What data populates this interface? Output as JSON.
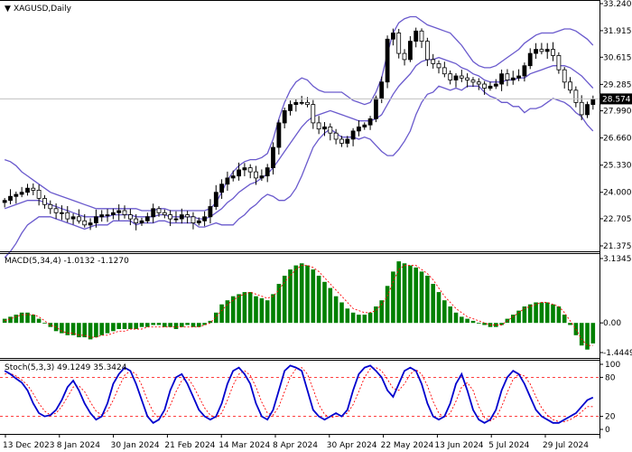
{
  "chart_data": [
    {
      "type": "candlestick",
      "title": "XAGUSD,Daily",
      "y_ticks": [
        "33.240",
        "31.915",
        "30.615",
        "29.285",
        "27.990",
        "26.660",
        "25.330",
        "24.000",
        "22.705",
        "21.375"
      ],
      "ylim": [
        21.375,
        33.24
      ],
      "current_price": "28.574",
      "x_ticks": [
        "13 Dec 2023",
        "8 Jan 2024",
        "30 Jan 2024",
        "21 Feb 2024",
        "14 Mar 2024",
        "8 Apr 2024",
        "30 Apr 2024",
        "22 May 2024",
        "13 Jun 2024",
        "5 Jul 2024",
        "29 Jul 2024"
      ],
      "bollinger_color": "#6a5acd",
      "bull_color": "#000000",
      "bear_color": "#ffffff",
      "close_series": [
        23.6,
        23.8,
        23.9,
        24.0,
        24.2,
        24.1,
        23.7,
        23.4,
        23.2,
        23.0,
        23.0,
        22.7,
        22.8,
        22.6,
        22.4,
        22.5,
        22.8,
        22.9,
        22.9,
        23.0,
        23.1,
        22.9,
        22.7,
        22.5,
        22.6,
        22.8,
        23.2,
        23.0,
        22.9,
        22.7,
        22.7,
        22.9,
        22.8,
        22.5,
        22.6,
        22.8,
        23.3,
        24.0,
        24.4,
        24.7,
        24.8,
        25.1,
        25.2,
        25.0,
        24.7,
        24.8,
        25.2,
        26.2,
        27.4,
        28.0,
        28.3,
        28.4,
        28.4,
        28.3,
        27.4,
        27.1,
        27.2,
        26.9,
        26.6,
        26.4,
        26.6,
        27.0,
        27.2,
        27.3,
        27.6,
        28.6,
        29.4,
        31.5,
        31.8,
        30.8,
        30.5,
        31.4,
        31.9,
        31.4,
        30.5,
        30.3,
        30.1,
        29.8,
        29.5,
        29.7,
        29.6,
        29.5,
        29.4,
        29.3,
        29.1,
        29.2,
        29.3,
        29.8,
        29.5,
        29.6,
        29.7,
        30.2,
        30.8,
        31.0,
        30.9,
        31.0,
        30.7,
        30.0,
        29.4,
        29.0,
        28.4,
        27.8,
        28.3,
        28.574
      ],
      "bollinger": {
        "middle": [
          23.2,
          23.3,
          23.4,
          23.5,
          23.6,
          23.6,
          23.6,
          23.5,
          23.4,
          23.3,
          23.2,
          23.1,
          23.0,
          22.9,
          22.8,
          22.8,
          22.8,
          22.8,
          22.8,
          22.9,
          22.9,
          22.9,
          22.9,
          22.8,
          22.8,
          22.8,
          22.8,
          22.9,
          22.9,
          22.8,
          22.8,
          22.8,
          22.8,
          22.8,
          22.7,
          22.7,
          22.8,
          23.0,
          23.2,
          23.5,
          23.7,
          24.0,
          24.2,
          24.4,
          24.5,
          24.7,
          24.9,
          25.2,
          25.6,
          26.0,
          26.4,
          26.8,
          27.2,
          27.5,
          27.7,
          27.8,
          27.9,
          28.0,
          27.9,
          27.8,
          27.7,
          27.6,
          27.5,
          27.5,
          27.5,
          27.6,
          27.8,
          28.3,
          28.8,
          29.2,
          29.5,
          29.8,
          30.2,
          30.4,
          30.5,
          30.5,
          30.6,
          30.5,
          30.4,
          30.3,
          30.1,
          30.0,
          29.8,
          29.7,
          29.5,
          29.4,
          29.4,
          29.4,
          29.5,
          29.5,
          29.6,
          29.6,
          29.8,
          29.9,
          30.0,
          30.1,
          30.2,
          30.2,
          30.2,
          30.1,
          29.9,
          29.7,
          29.4,
          29.1
        ],
        "upper": [
          25.6,
          25.5,
          25.3,
          25.0,
          24.8,
          24.6,
          24.4,
          24.2,
          24.0,
          23.9,
          23.8,
          23.7,
          23.6,
          23.5,
          23.4,
          23.3,
          23.2,
          23.2,
          23.2,
          23.2,
          23.2,
          23.2,
          23.2,
          23.2,
          23.1,
          23.1,
          23.1,
          23.2,
          23.2,
          23.1,
          23.1,
          23.1,
          23.1,
          23.1,
          23.1,
          23.1,
          23.2,
          23.5,
          24.0,
          24.6,
          25.0,
          25.3,
          25.5,
          25.6,
          25.6,
          25.7,
          25.9,
          26.6,
          27.6,
          28.4,
          29.0,
          29.4,
          29.6,
          29.5,
          29.2,
          29.0,
          28.9,
          28.9,
          28.9,
          28.9,
          28.7,
          28.5,
          28.4,
          28.3,
          28.4,
          28.9,
          29.6,
          30.8,
          31.8,
          32.3,
          32.5,
          32.6,
          32.6,
          32.4,
          32.2,
          32.1,
          32.0,
          31.9,
          31.8,
          31.5,
          31.2,
          30.8,
          30.4,
          30.2,
          30.1,
          30.1,
          30.2,
          30.4,
          30.6,
          30.8,
          31.0,
          31.3,
          31.5,
          31.7,
          31.8,
          31.8,
          31.8,
          31.9,
          32.0,
          32.0,
          31.9,
          31.7,
          31.5,
          31.2
        ],
        "lower": [
          20.8,
          21.1,
          21.5,
          22.0,
          22.4,
          22.6,
          22.8,
          22.8,
          22.8,
          22.7,
          22.6,
          22.5,
          22.4,
          22.3,
          22.2,
          22.3,
          22.4,
          22.4,
          22.4,
          22.6,
          22.6,
          22.6,
          22.6,
          22.4,
          22.5,
          22.5,
          22.5,
          22.6,
          22.6,
          22.5,
          22.5,
          22.5,
          22.5,
          22.5,
          22.3,
          22.3,
          22.4,
          22.5,
          22.4,
          22.4,
          22.4,
          22.7,
          22.9,
          23.2,
          23.4,
          23.7,
          23.9,
          23.8,
          23.6,
          23.6,
          23.8,
          24.2,
          24.8,
          25.5,
          26.2,
          26.6,
          26.9,
          27.1,
          26.9,
          26.7,
          26.7,
          26.7,
          26.6,
          26.7,
          26.6,
          26.3,
          26.0,
          25.8,
          25.8,
          26.1,
          26.5,
          27.0,
          27.8,
          28.4,
          28.8,
          28.9,
          29.2,
          29.1,
          29.0,
          29.1,
          29.0,
          29.2,
          29.2,
          29.2,
          28.9,
          28.7,
          28.6,
          28.4,
          28.4,
          28.2,
          28.2,
          27.9,
          28.1,
          28.1,
          28.2,
          28.4,
          28.6,
          28.5,
          28.4,
          28.2,
          27.9,
          27.7,
          27.3,
          27.0
        ]
      }
    },
    {
      "type": "bar",
      "title": "MACD(5,34,4) -1.0132 -1.1270",
      "y_ticks": [
        "3.1345",
        "0.00",
        "-1.4449"
      ],
      "ylim": [
        -1.4449,
        3.1345
      ],
      "bar_color": "#008000",
      "signal_color": "#ff0000",
      "values": [
        0.2,
        0.3,
        0.4,
        0.5,
        0.5,
        0.4,
        0.2,
        0.0,
        -0.2,
        -0.4,
        -0.5,
        -0.6,
        -0.6,
        -0.7,
        -0.7,
        -0.8,
        -0.7,
        -0.6,
        -0.5,
        -0.4,
        -0.3,
        -0.3,
        -0.3,
        -0.3,
        -0.2,
        -0.2,
        -0.1,
        -0.1,
        -0.2,
        -0.2,
        -0.3,
        -0.2,
        -0.1,
        -0.2,
        -0.2,
        -0.1,
        0.1,
        0.5,
        0.9,
        1.1,
        1.3,
        1.4,
        1.5,
        1.5,
        1.3,
        1.2,
        1.1,
        1.4,
        1.9,
        2.3,
        2.6,
        2.8,
        2.9,
        2.8,
        2.6,
        2.3,
        2.0,
        1.7,
        1.3,
        1.0,
        0.7,
        0.5,
        0.4,
        0.4,
        0.5,
        0.8,
        1.1,
        1.8,
        2.5,
        3.0,
        2.9,
        2.8,
        2.7,
        2.5,
        2.3,
        1.9,
        1.5,
        1.1,
        0.8,
        0.5,
        0.3,
        0.2,
        0.1,
        0.0,
        -0.1,
        -0.2,
        -0.2,
        -0.1,
        0.2,
        0.4,
        0.6,
        0.8,
        0.9,
        1.0,
        1.0,
        1.0,
        0.9,
        0.8,
        0.4,
        -0.1,
        -0.6,
        -1.1,
        -1.3,
        -1.0
      ],
      "signal": [
        0.1,
        0.2,
        0.3,
        0.4,
        0.4,
        0.4,
        0.3,
        0.1,
        -0.1,
        -0.2,
        -0.4,
        -0.5,
        -0.5,
        -0.6,
        -0.6,
        -0.7,
        -0.7,
        -0.6,
        -0.6,
        -0.5,
        -0.4,
        -0.4,
        -0.3,
        -0.3,
        -0.3,
        -0.2,
        -0.2,
        -0.2,
        -0.2,
        -0.2,
        -0.2,
        -0.2,
        -0.2,
        -0.2,
        -0.2,
        -0.1,
        0.0,
        0.3,
        0.6,
        0.9,
        1.1,
        1.3,
        1.4,
        1.5,
        1.4,
        1.3,
        1.2,
        1.3,
        1.6,
        2.0,
        2.3,
        2.6,
        2.8,
        2.8,
        2.7,
        2.5,
        2.2,
        1.9,
        1.6,
        1.3,
        1.0,
        0.7,
        0.6,
        0.5,
        0.5,
        0.6,
        0.9,
        1.3,
        2.0,
        2.6,
        2.8,
        2.8,
        2.8,
        2.6,
        2.4,
        2.1,
        1.7,
        1.3,
        1.0,
        0.7,
        0.5,
        0.3,
        0.2,
        0.1,
        0.0,
        -0.1,
        -0.1,
        -0.1,
        0.1,
        0.3,
        0.5,
        0.7,
        0.8,
        0.9,
        1.0,
        1.0,
        0.9,
        0.8,
        0.5,
        0.1,
        -0.3,
        -0.8,
        -1.1,
        -1.1
      ]
    },
    {
      "type": "line",
      "title": "Stoch(5,3,3) 49.1249 35.3424",
      "y_ticks": [
        "100",
        "80",
        "20",
        "0"
      ],
      "ylim": [
        0,
        100
      ],
      "levels": [
        80,
        20
      ],
      "main_color": "#0000cd",
      "signal_color": "#ff0000",
      "main": [
        90,
        85,
        78,
        72,
        60,
        40,
        25,
        20,
        22,
        30,
        45,
        65,
        75,
        60,
        40,
        25,
        15,
        20,
        40,
        70,
        85,
        95,
        90,
        70,
        45,
        20,
        10,
        15,
        30,
        60,
        80,
        85,
        70,
        50,
        30,
        20,
        15,
        20,
        40,
        70,
        90,
        95,
        85,
        70,
        40,
        20,
        15,
        30,
        60,
        90,
        98,
        95,
        90,
        60,
        30,
        20,
        15,
        20,
        25,
        20,
        30,
        60,
        85,
        95,
        98,
        90,
        80,
        60,
        50,
        70,
        90,
        95,
        90,
        70,
        40,
        20,
        15,
        20,
        40,
        70,
        85,
        60,
        30,
        15,
        10,
        15,
        30,
        60,
        80,
        90,
        85,
        70,
        50,
        30,
        20,
        15,
        10,
        10,
        15,
        20,
        25,
        35,
        45,
        49
      ],
      "signal": [
        85,
        86,
        82,
        76,
        68,
        55,
        40,
        28,
        22,
        25,
        35,
        50,
        65,
        67,
        58,
        42,
        28,
        22,
        28,
        45,
        65,
        83,
        90,
        85,
        68,
        45,
        27,
        17,
        20,
        37,
        58,
        75,
        80,
        67,
        50,
        33,
        22,
        18,
        25,
        45,
        68,
        85,
        90,
        83,
        65,
        42,
        25,
        22,
        35,
        58,
        80,
        93,
        95,
        85,
        62,
        38,
        23,
        18,
        20,
        22,
        25,
        38,
        58,
        80,
        93,
        95,
        90,
        77,
        63,
        60,
        70,
        85,
        92,
        85,
        67,
        43,
        25,
        18,
        25,
        43,
        65,
        72,
        60,
        35,
        18,
        13,
        18,
        35,
        57,
        77,
        85,
        82,
        70,
        50,
        33,
        22,
        15,
        12,
        12,
        15,
        20,
        27,
        35,
        35
      ]
    }
  ]
}
